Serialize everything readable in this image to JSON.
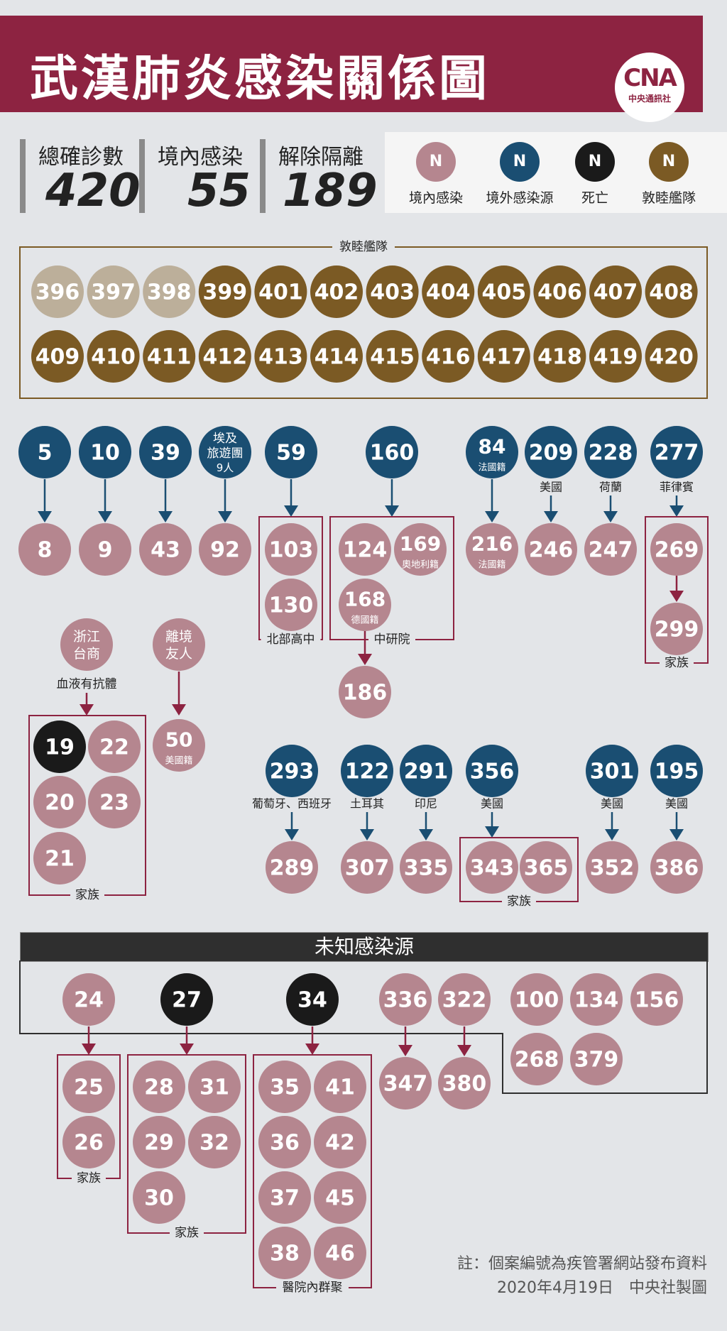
{
  "title": "武漢肺炎感染關係圖",
  "logo": {
    "text": "CNA",
    "sub": "中央通訊社"
  },
  "stats": [
    {
      "label": "總確診數",
      "value": "420"
    },
    {
      "label": "境內感染",
      "value": "55"
    },
    {
      "label": "解除隔離",
      "value": "189"
    }
  ],
  "legend": [
    {
      "symbol": "N",
      "label": "境內感染",
      "color": "#b5868f"
    },
    {
      "symbol": "N",
      "label": "境外感染源",
      "color": "#1a4e72"
    },
    {
      "symbol": "N",
      "label": "死亡",
      "color": "#1a1a1a"
    },
    {
      "symbol": "N",
      "label": "敦睦艦隊",
      "color": "#7b5a24"
    }
  ],
  "colors": {
    "domestic": "#b5868f",
    "imported": "#1a4e72",
    "death": "#1a1a1a",
    "fleet": "#7b5a24",
    "fleet_light": "#bcaf9a",
    "group_border": "#8d2341",
    "arrow_domestic": "#8d2341",
    "arrow_imported": "#1a4e72"
  },
  "fleet": {
    "label": "敦睦艦隊",
    "light_cases": [
      "396",
      "397",
      "398"
    ],
    "cases": [
      "399",
      "401",
      "402",
      "403",
      "404",
      "405",
      "406",
      "407",
      "408",
      "409",
      "410",
      "411",
      "412",
      "413",
      "414",
      "415",
      "416",
      "417",
      "418",
      "419",
      "420"
    ]
  },
  "imported_chains": [
    {
      "source": "5",
      "infected": [
        "8"
      ]
    },
    {
      "source": "10",
      "infected": [
        "9"
      ]
    },
    {
      "source": "39",
      "infected": [
        "43"
      ]
    },
    {
      "source": "埃及旅遊團",
      "source_sub": "9人",
      "infected": [
        "92"
      ]
    },
    {
      "source": "59",
      "infected": [
        "103",
        "130"
      ],
      "group": "北部高中"
    },
    {
      "source": "160",
      "infected": [
        "124",
        "169",
        "168"
      ],
      "infected_notes": {
        "169": "奧地利籍",
        "168": "德國籍"
      },
      "group": "中研院",
      "next": {
        "from": "168",
        "to": "186"
      }
    },
    {
      "source": "84",
      "source_note": "法國籍",
      "infected": [
        "216"
      ],
      "infected_notes": {
        "216": "法國籍"
      }
    },
    {
      "source": "209",
      "origin": "美國",
      "infected": [
        "246"
      ]
    },
    {
      "source": "228",
      "origin": "荷蘭",
      "infected": [
        "247"
      ]
    },
    {
      "source": "277",
      "origin": "菲律賓",
      "infected": [
        "269",
        "299"
      ],
      "group": "家族"
    }
  ],
  "taiwan_business": {
    "source": "浙江台商",
    "source_note": "血液有抗體",
    "group": "家族",
    "deaths": [
      "19"
    ],
    "infected": [
      "22",
      "20",
      "23",
      "21"
    ]
  },
  "friend_abroad": {
    "source": "離境友人",
    "case": "50",
    "case_note": "美國籍"
  },
  "second_row_chains": [
    {
      "source": "293",
      "origin": "葡萄牙、西班牙",
      "infected": [
        "289"
      ]
    },
    {
      "source": "122",
      "origin": "土耳其",
      "infected": [
        "307"
      ]
    },
    {
      "source": "291",
      "origin": "印尼",
      "infected": [
        "335"
      ]
    },
    {
      "source": "356",
      "origin": "美國",
      "infected": [
        "343",
        "365"
      ],
      "group": "家族"
    },
    {
      "source": "301",
      "origin": "美國",
      "infected": [
        "352"
      ]
    },
    {
      "source": "195",
      "origin": "美國",
      "infected": [
        "386"
      ]
    }
  ],
  "unknown": {
    "label": "未知感染源",
    "chains": [
      {
        "source": "24",
        "infected": [
          "25",
          "26"
        ],
        "group": "家族"
      },
      {
        "source": "27",
        "death": true,
        "infected": [
          "28",
          "31",
          "29",
          "32",
          "30"
        ],
        "group": "家族"
      },
      {
        "source": "34",
        "death": true,
        "infected": [
          "35",
          "41",
          "36",
          "42",
          "37",
          "45",
          "38",
          "46"
        ],
        "group": "醫院內群聚"
      },
      {
        "source": "336",
        "infected": [
          "347"
        ]
      },
      {
        "source": "322",
        "infected": [
          "380"
        ]
      }
    ],
    "isolated": [
      "100",
      "134",
      "156",
      "268",
      "379"
    ]
  },
  "notes": [
    "註：個案編號為疾管署網站發布資料",
    "2020年4月19日　中央社製圖"
  ]
}
